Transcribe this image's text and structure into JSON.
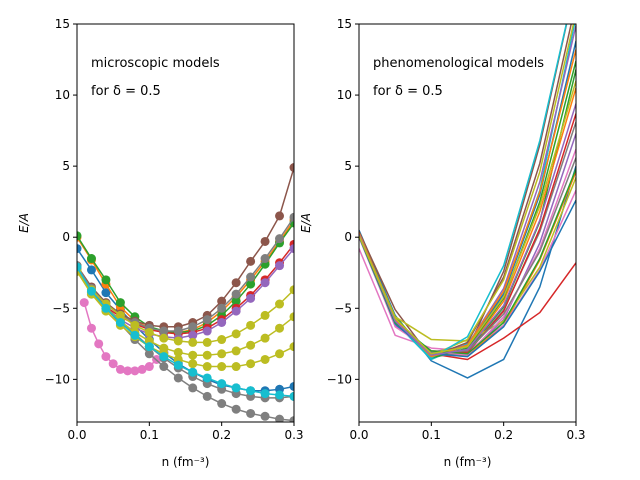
{
  "chart_data": [
    {
      "type": "line",
      "panel": "left",
      "annotations": [
        "microscopic models",
        "for δ = 0.5"
      ],
      "xlabel": "n (fm⁻³)",
      "ylabel": "E/A",
      "xlim": [
        0,
        0.3
      ],
      "ylim": [
        -13,
        15
      ],
      "xticks": [
        "0.0",
        "0.1",
        "0.2",
        "0.3"
      ],
      "yticks": [
        "−10",
        "−5",
        "0",
        "5",
        "10",
        "15"
      ],
      "grid": false,
      "markers": true,
      "series": [
        {
          "color": "#1f77b4",
          "x": [
            0.0,
            0.02,
            0.04,
            0.06,
            0.08,
            0.1,
            0.12,
            0.14,
            0.16,
            0.18,
            0.2,
            0.22,
            0.24,
            0.26,
            0.28,
            0.3
          ],
          "y": [
            -0.8,
            -2.3,
            -3.9,
            -5.1,
            -6.2,
            -7.2,
            -8.1,
            -8.9,
            -9.5,
            -10.0,
            -10.4,
            -10.6,
            -10.8,
            -10.8,
            -10.7,
            -10.5
          ]
        },
        {
          "color": "#ff7f0e",
          "x": [
            0.0,
            0.02,
            0.04,
            0.06,
            0.08,
            0.1,
            0.12,
            0.14,
            0.16,
            0.18,
            0.2,
            0.22,
            0.24,
            0.26,
            0.28,
            0.3
          ],
          "y": [
            0.0,
            -1.6,
            -3.3,
            -4.9,
            -5.9,
            -6.4,
            -6.7,
            -6.7,
            -6.5,
            -6.0,
            -5.2,
            -4.2,
            -3.0,
            -1.7,
            -0.3,
            1.2
          ]
        },
        {
          "color": "#2ca02c",
          "x": [
            0.0,
            0.02,
            0.04,
            0.06,
            0.08,
            0.1,
            0.12,
            0.14,
            0.16,
            0.18,
            0.2,
            0.22,
            0.24,
            0.26,
            0.28,
            0.3
          ],
          "y": [
            0.1,
            -1.5,
            -3.0,
            -4.6,
            -5.6,
            -6.3,
            -6.6,
            -6.7,
            -6.6,
            -6.2,
            -5.5,
            -4.5,
            -3.3,
            -1.9,
            -0.4,
            1.0
          ]
        },
        {
          "color": "#d62728",
          "x": [
            0.0,
            0.02,
            0.04,
            0.06,
            0.08,
            0.1,
            0.12,
            0.14,
            0.16,
            0.18,
            0.2,
            0.22,
            0.24,
            0.26,
            0.28,
            0.3
          ],
          "y": [
            -2.2,
            -3.9,
            -4.9,
            -5.6,
            -6.1,
            -6.5,
            -6.7,
            -6.8,
            -6.7,
            -6.4,
            -5.8,
            -5.0,
            -4.1,
            -3.0,
            -1.8,
            -0.5
          ]
        },
        {
          "color": "#9467bd",
          "x": [
            0.0,
            0.02,
            0.04,
            0.06,
            0.08,
            0.1,
            0.12,
            0.14,
            0.16,
            0.18,
            0.2,
            0.22,
            0.24,
            0.26,
            0.28,
            0.3
          ],
          "y": [
            -2.3,
            -4.0,
            -5.0,
            -5.8,
            -6.4,
            -6.8,
            -7.0,
            -7.1,
            -6.9,
            -6.6,
            -6.0,
            -5.2,
            -4.3,
            -3.2,
            -2.0,
            -0.8
          ]
        },
        {
          "color": "#8c564b",
          "x": [
            0.0,
            0.02,
            0.04,
            0.06,
            0.08,
            0.1,
            0.12,
            0.14,
            0.16,
            0.18,
            0.2,
            0.22,
            0.24,
            0.26,
            0.28,
            0.3
          ],
          "y": [
            -2.0,
            -3.5,
            -4.6,
            -5.4,
            -5.9,
            -6.2,
            -6.3,
            -6.3,
            -6.0,
            -5.5,
            -4.5,
            -3.2,
            -1.7,
            -0.3,
            1.5,
            4.9
          ]
        },
        {
          "color": "#e377c2",
          "x": [
            0.01,
            0.02,
            0.03,
            0.04,
            0.05,
            0.06,
            0.07,
            0.08,
            0.09,
            0.1,
            0.11,
            0.12
          ],
          "y": [
            -4.6,
            -6.4,
            -7.5,
            -8.4,
            -8.9,
            -9.3,
            -9.4,
            -9.4,
            -9.3,
            -9.1,
            -8.6,
            -8.1
          ]
        },
        {
          "color": "#7f7f7f",
          "x": [
            0.0,
            0.02,
            0.04,
            0.06,
            0.08,
            0.1,
            0.12,
            0.14,
            0.16,
            0.18,
            0.2,
            0.22,
            0.24,
            0.26,
            0.28,
            0.3
          ],
          "y": [
            -2.1,
            -3.6,
            -4.7,
            -5.5,
            -6.0,
            -6.4,
            -6.6,
            -6.6,
            -6.3,
            -5.8,
            -5.0,
            -4.0,
            -2.8,
            -1.5,
            -0.1,
            1.4
          ]
        },
        {
          "color": "#7f7f7f",
          "x": [
            0.0,
            0.02,
            0.04,
            0.06,
            0.08,
            0.1,
            0.12,
            0.14,
            0.16,
            0.18,
            0.2,
            0.22,
            0.24,
            0.26,
            0.28,
            0.3
          ],
          "y": [
            -2.0,
            -3.8,
            -5.0,
            -6.1,
            -7.2,
            -8.2,
            -9.1,
            -9.9,
            -10.6,
            -11.2,
            -11.7,
            -12.1,
            -12.4,
            -12.6,
            -12.8,
            -12.9
          ]
        },
        {
          "color": "#7f7f7f",
          "x": [
            0.0,
            0.02,
            0.04,
            0.06,
            0.08,
            0.1,
            0.12,
            0.14,
            0.16,
            0.18,
            0.2,
            0.22,
            0.24,
            0.26,
            0.28,
            0.3
          ],
          "y": [
            -2.0,
            -3.7,
            -4.9,
            -5.9,
            -6.8,
            -7.7,
            -8.5,
            -9.2,
            -9.8,
            -10.3,
            -10.7,
            -11.0,
            -11.2,
            -11.3,
            -11.3,
            -11.2
          ]
        },
        {
          "color": "#bcbd22",
          "x": [
            0.0,
            0.02,
            0.04,
            0.06,
            0.08,
            0.1,
            0.12,
            0.14,
            0.16,
            0.18,
            0.2,
            0.22,
            0.24,
            0.26,
            0.28,
            0.3
          ],
          "y": [
            -2.3,
            -3.7,
            -4.7,
            -5.5,
            -6.2,
            -6.7,
            -7.1,
            -7.3,
            -7.4,
            -7.4,
            -7.2,
            -6.8,
            -6.2,
            -5.5,
            -4.7,
            -3.7
          ]
        },
        {
          "color": "#bcbd22",
          "x": [
            0.0,
            0.02,
            0.04,
            0.06,
            0.08,
            0.1,
            0.12,
            0.14,
            0.16,
            0.18,
            0.2,
            0.22,
            0.24,
            0.26,
            0.28,
            0.3
          ],
          "y": [
            -2.4,
            -3.9,
            -5.0,
            -5.9,
            -6.7,
            -7.3,
            -7.8,
            -8.1,
            -8.3,
            -8.3,
            -8.2,
            -8.0,
            -7.6,
            -7.1,
            -6.4,
            -5.6
          ]
        },
        {
          "color": "#bcbd22",
          "x": [
            0.0,
            0.02,
            0.04,
            0.06,
            0.08,
            0.1,
            0.12,
            0.14,
            0.16,
            0.18,
            0.2,
            0.22,
            0.24,
            0.26,
            0.28,
            0.3
          ],
          "y": [
            -2.4,
            -4.0,
            -5.2,
            -6.2,
            -7.0,
            -7.7,
            -8.2,
            -8.6,
            -8.9,
            -9.1,
            -9.1,
            -9.1,
            -8.9,
            -8.6,
            -8.2,
            -7.7
          ]
        },
        {
          "color": "#17becf",
          "x": [
            0.0,
            0.02,
            0.04,
            0.06,
            0.08,
            0.1,
            0.12,
            0.14,
            0.16,
            0.18,
            0.2,
            0.22,
            0.24,
            0.26,
            0.28,
            0.3
          ],
          "y": [
            -2.1,
            -3.8,
            -5.0,
            -6.0,
            -6.9,
            -7.7,
            -8.4,
            -9.0,
            -9.5,
            -9.9,
            -10.3,
            -10.6,
            -10.8,
            -11.0,
            -11.1,
            -11.2
          ]
        }
      ]
    },
    {
      "type": "line",
      "panel": "right",
      "annotations": [
        "phenomenological models",
        "for δ = 0.5"
      ],
      "xlabel": "n (fm⁻³)",
      "ylabel": "E/A",
      "xlim": [
        0,
        0.3
      ],
      "ylim": [
        -13,
        15
      ],
      "xticks": [
        "0.0",
        "0.1",
        "0.2",
        "0.3"
      ],
      "yticks": [
        "−10",
        "−5",
        "0",
        "5",
        "10",
        "15"
      ],
      "grid": false,
      "markers": false,
      "x": [
        0.0,
        0.05,
        0.1,
        0.15,
        0.2,
        0.25,
        0.3
      ],
      "series": [
        {
          "color": "#1f77b4",
          "y": [
            0.5,
            -5.5,
            -8.7,
            -9.9,
            -8.6,
            -3.5,
            5.0
          ]
        },
        {
          "color": "#ff7f0e",
          "y": [
            0.2,
            -5.8,
            -8.3,
            -8.3,
            -6.2,
            -1.6,
            4.6
          ]
        },
        {
          "color": "#2ca02c",
          "y": [
            0.1,
            -5.6,
            -8.4,
            -8.0,
            -4.9,
            1.1,
            11.8
          ]
        },
        {
          "color": "#d62728",
          "y": [
            0.1,
            -5.8,
            -8.2,
            -8.6,
            -7.1,
            -5.3,
            -1.8
          ]
        },
        {
          "color": "#9467bd",
          "y": [
            0.2,
            -5.9,
            -8.3,
            -8.2,
            -5.8,
            -0.4,
            7.3
          ]
        },
        {
          "color": "#8c564b",
          "y": [
            0.4,
            -5.1,
            -8.5,
            -7.9,
            -2.4,
            6.5,
            18.0
          ]
        },
        {
          "color": "#e377c2",
          "y": [
            -0.8,
            -6.9,
            -7.8,
            -8.0,
            -6.2,
            -2.3,
            3.3
          ]
        },
        {
          "color": "#7f7f7f",
          "y": [
            0.3,
            -5.7,
            -8.4,
            -8.1,
            -5.1,
            0.4,
            8.1
          ]
        },
        {
          "color": "#bcbd22",
          "y": [
            0.2,
            -5.6,
            -7.2,
            -7.3,
            -5.9,
            -2.1,
            4.2
          ]
        },
        {
          "color": "#17becf",
          "y": [
            0.3,
            -6.0,
            -8.6,
            -7.5,
            -4.0,
            3.3,
            15.5
          ]
        },
        {
          "color": "#1f77b4",
          "y": [
            0.1,
            -5.8,
            -8.3,
            -7.7,
            -4.0,
            3.0,
            13.8
          ]
        },
        {
          "color": "#ff7f0e",
          "y": [
            0.2,
            -6.0,
            -8.2,
            -7.9,
            -4.5,
            1.8,
            10.5
          ]
        },
        {
          "color": "#2ca02c",
          "y": [
            0.1,
            -5.7,
            -8.5,
            -7.8,
            -4.3,
            2.5,
            12.4
          ]
        },
        {
          "color": "#d62728",
          "y": [
            0.2,
            -6.1,
            -8.0,
            -8.1,
            -5.2,
            0.6,
            8.7
          ]
        },
        {
          "color": "#9467bd",
          "y": [
            0.0,
            -6.2,
            -8.1,
            -7.6,
            -3.6,
            3.9,
            14.9
          ]
        },
        {
          "color": "#8c564b",
          "y": [
            0.3,
            -5.9,
            -8.4,
            -7.4,
            -2.8,
            5.2,
            16.5
          ]
        },
        {
          "color": "#e377c2",
          "y": [
            0.2,
            -6.3,
            -8.0,
            -8.3,
            -5.6,
            -0.8,
            6.2
          ]
        },
        {
          "color": "#7f7f7f",
          "y": [
            0.1,
            -5.8,
            -8.1,
            -8.0,
            -5.4,
            -1.0,
            5.6
          ]
        },
        {
          "color": "#bcbd22",
          "y": [
            0.2,
            -6.0,
            -8.3,
            -7.2,
            -3.0,
            4.6,
            15.8
          ]
        },
        {
          "color": "#17becf",
          "y": [
            0.2,
            -5.9,
            -8.5,
            -7.0,
            -2.0,
            6.8,
            18.0
          ]
        },
        {
          "color": "#1f77b4",
          "y": [
            0.1,
            -6.1,
            -8.2,
            -8.4,
            -6.3,
            -2.4,
            2.6
          ]
        },
        {
          "color": "#ff7f0e",
          "y": [
            0.3,
            -5.8,
            -8.4,
            -7.6,
            -3.8,
            3.2,
            13.2
          ]
        },
        {
          "color": "#2ca02c",
          "y": [
            0.1,
            -6.0,
            -8.0,
            -8.2,
            -6.0,
            -1.5,
            4.8
          ]
        },
        {
          "color": "#9467bd",
          "y": [
            0.2,
            -5.9,
            -8.3,
            -7.9,
            -4.8,
            1.2,
            9.4
          ]
        },
        {
          "color": "#bcbd22",
          "y": [
            0.1,
            -5.7,
            -8.2,
            -7.7,
            -4.2,
            2.2,
            11.0
          ]
        }
      ]
    }
  ]
}
